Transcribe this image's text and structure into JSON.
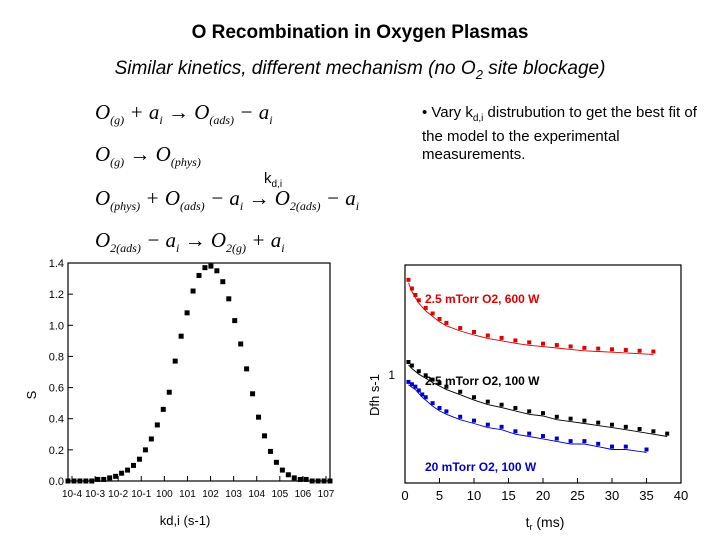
{
  "slide": {
    "title": "O Recombination in Oxygen Plasmas",
    "subtitle": "Similar kinetics, different mechanism (no O",
    "subtitle_sub": "2",
    "subtitle_end": " site blockage)"
  },
  "equations": [
    {
      "parts": [
        "O",
        "(g)",
        " + a",
        "i",
        " → O",
        "(ads)",
        " − a",
        "i"
      ]
    },
    {
      "parts": [
        "O",
        "(g)",
        " → O",
        "(phys)"
      ]
    },
    {
      "parts": [
        "O",
        "(phys)",
        " + O",
        "(ads)",
        " − a",
        "i",
        " → O",
        "2(ads)",
        " − a",
        "i"
      ]
    },
    {
      "parts": [
        "O",
        "2(ads)",
        " − a",
        "i",
        " → O",
        "2(g)",
        " + a",
        "i"
      ]
    }
  ],
  "rate_label": {
    "main": "k",
    "sub": "d,i"
  },
  "bullet": {
    "pre": "• Vary k",
    "sub": "d,i",
    "post": " distrubution to get the best fit of the model to the experimental measurements."
  },
  "chart_data": [
    {
      "type": "scatter",
      "xscale": "log",
      "xlim": [
        0.0001,
        10000000
      ],
      "ylim": [
        0.0,
        1.4
      ],
      "xticks": [
        "10-4",
        "10-3",
        "10-2",
        "10-1",
        "100",
        "101",
        "102",
        "103",
        "104",
        "105",
        "106",
        "107"
      ],
      "yticks": [
        "0.0",
        "0.2",
        "0.4",
        "0.6",
        "0.8",
        "1.0",
        "1.2",
        "1.4"
      ],
      "xlabel": "kd,i (s-1)",
      "ylabel": "S",
      "series": [
        {
          "color": "#000000",
          "peak_x": 100,
          "peak_y": 1.38,
          "x": [
            0.0001,
            0.000178,
            0.000316,
            0.000562,
            0.001,
            0.00178,
            0.00316,
            0.00562,
            0.01,
            0.0178,
            0.0316,
            0.0562,
            0.1,
            0.178,
            0.316,
            0.562,
            1,
            1.78,
            3.16,
            5.62,
            10,
            17.8,
            31.6,
            56.2,
            100,
            178,
            316,
            562,
            1000,
            1780,
            3160,
            5620,
            10000,
            17800,
            31600,
            56200,
            100000,
            178000,
            316000,
            562000,
            1000000,
            1780000,
            3160000,
            5620000,
            10000000
          ],
          "y": [
            0.0,
            0.0,
            0.0,
            0.0,
            0.0,
            0.01,
            0.01,
            0.02,
            0.03,
            0.05,
            0.07,
            0.1,
            0.14,
            0.2,
            0.27,
            0.36,
            0.46,
            0.57,
            0.77,
            0.93,
            1.08,
            1.22,
            1.32,
            1.37,
            1.38,
            1.35,
            1.28,
            1.17,
            1.03,
            0.88,
            0.72,
            0.56,
            0.41,
            0.29,
            0.19,
            0.12,
            0.07,
            0.04,
            0.02,
            0.01,
            0.01,
            0.0,
            0.0,
            0.0,
            0.0
          ]
        }
      ]
    },
    {
      "type": "scatter",
      "yscale": "log",
      "xlim": [
        0,
        40
      ],
      "xticks": [
        "0",
        "5",
        "10",
        "15",
        "20",
        "25",
        "30",
        "35",
        "40"
      ],
      "ytick_label": "1",
      "xlabel": "t (ms)",
      "xlabel_main": "t",
      "xlabel_sub": "r",
      "xlabel_units": " (ms)",
      "ylabel": "Dfh s-1",
      "series": [
        {
          "name": "2.5 mTorr O2, 600 W",
          "color": "#e00000",
          "x": [
            0.5,
            1,
            1.5,
            2,
            3,
            4,
            5,
            6,
            8,
            10,
            12,
            14,
            16,
            18,
            20,
            22,
            24,
            26,
            28,
            30,
            32,
            34,
            36
          ],
          "y": [
            2.6,
            2.3,
            2.1,
            1.95,
            1.75,
            1.62,
            1.5,
            1.42,
            1.32,
            1.25,
            1.19,
            1.15,
            1.11,
            1.08,
            1.06,
            1.04,
            1.02,
            1.0,
            0.99,
            0.98,
            0.97,
            0.96,
            0.95
          ]
        },
        {
          "name": "2.5 mTorr O2, 100 W",
          "color": "#000000",
          "x": [
            0.5,
            1,
            2,
            3,
            4,
            5,
            6,
            8,
            10,
            12,
            14,
            16,
            18,
            20,
            22,
            24,
            26,
            28,
            30,
            32,
            34,
            36,
            38
          ],
          "y": [
            0.82,
            0.78,
            0.72,
            0.68,
            0.64,
            0.61,
            0.58,
            0.54,
            0.5,
            0.47,
            0.45,
            0.43,
            0.41,
            0.4,
            0.38,
            0.37,
            0.36,
            0.35,
            0.34,
            0.33,
            0.32,
            0.31,
            0.3
          ]
        },
        {
          "name": "20 mTorr O2, 100 W",
          "color": "#0000cc",
          "x": [
            0.5,
            1,
            1.5,
            2,
            2.5,
            3,
            4,
            5,
            6,
            8,
            10,
            12,
            14,
            16,
            18,
            20,
            22,
            24,
            26,
            28,
            30,
            32,
            35
          ],
          "y": [
            0.62,
            0.6,
            0.58,
            0.55,
            0.52,
            0.5,
            0.46,
            0.43,
            0.41,
            0.38,
            0.36,
            0.34,
            0.33,
            0.31,
            0.3,
            0.29,
            0.28,
            0.27,
            0.27,
            0.26,
            0.25,
            0.25,
            0.24
          ]
        }
      ]
    }
  ]
}
